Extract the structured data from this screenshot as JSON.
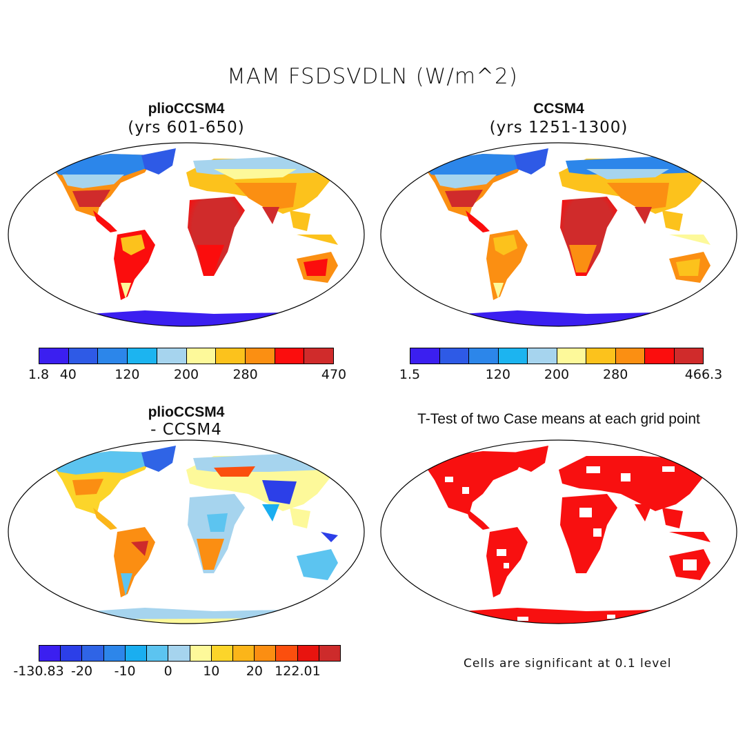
{
  "title": "MAM FSDSVDLN (W/m^2)",
  "panels": {
    "top_left": {
      "title": "plioCCSM4",
      "subtitle": "(yrs 601-650)"
    },
    "top_right": {
      "title": "CCSM4",
      "subtitle": "(yrs 1251-1300)"
    },
    "bottom_left": {
      "title": "plioCCSM4",
      "subtitle": "- CCSM4"
    },
    "bottom_right": {
      "title": "T-Test of two Case means at each grid point",
      "note": "Cells are significant at 0.1 level"
    }
  },
  "colorbars": {
    "top_left": {
      "colors": [
        "#3b1ff0",
        "#2e5ae6",
        "#2c86ea",
        "#1cb4f0",
        "#a6d4ee",
        "#fdf99a",
        "#fcc21c",
        "#fb8f12",
        "#fb0d0d",
        "#d02b2b"
      ],
      "ticks": [
        "1.8",
        "40",
        "120",
        "200",
        "280",
        "470"
      ],
      "tick_index": [
        0,
        1,
        3,
        5,
        7,
        10
      ]
    },
    "top_right": {
      "colors": [
        "#3b1ff0",
        "#2e5ae6",
        "#2c86ea",
        "#1cb4f0",
        "#a6d4ee",
        "#fdf99a",
        "#fcc21c",
        "#fb8f12",
        "#fb0d0d",
        "#d02b2b"
      ],
      "ticks": [
        "1.5",
        "120",
        "200",
        "280",
        "466.3"
      ],
      "tick_index": [
        0,
        3,
        5,
        7,
        10
      ]
    },
    "bottom_left": {
      "colors": [
        "#3b1ff0",
        "#2c3fe8",
        "#2f64e6",
        "#2d86ea",
        "#1aaef0",
        "#5cc4f0",
        "#a6d4ee",
        "#fdf99a",
        "#fcd52a",
        "#fbb519",
        "#fb8e12",
        "#fb4f0e",
        "#e8140f",
        "#cd2b2b"
      ],
      "ticks": [
        "-130.83",
        "-20",
        "-10",
        "0",
        "10",
        "20",
        "122.01"
      ],
      "tick_index": [
        0,
        2,
        4,
        6,
        8,
        10,
        12
      ]
    }
  },
  "colors": {
    "land_outline": "#000000",
    "ocean": "#ffffff",
    "significant": "#f81010"
  }
}
